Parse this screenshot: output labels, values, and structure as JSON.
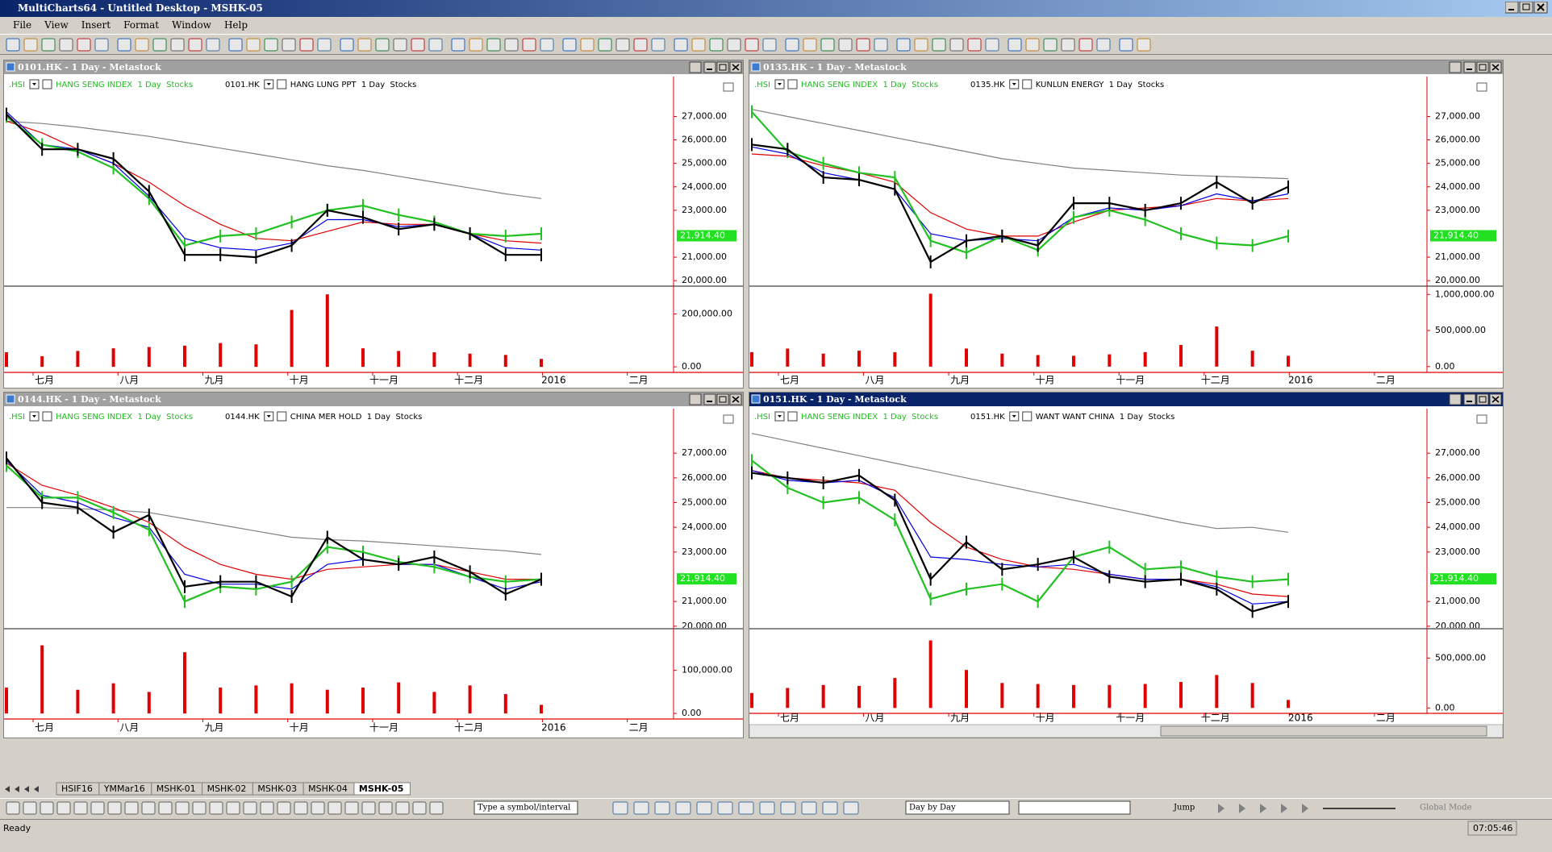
{
  "window": {
    "title": "MultiCharts64 - Untitled Desktop - MSHK-05"
  },
  "menu": [
    "File",
    "View",
    "Insert",
    "Format",
    "Window",
    "Help"
  ],
  "chart_data": [
    {
      "type": "line",
      "title": "0101.HK - 1 Day - Metastock",
      "active": false,
      "legend": [
        {
          "symbol": ".HSI",
          "description": "HANG SENG INDEX  1 Day  Stocks",
          "color": "#22bb22"
        },
        {
          "symbol": "0101.HK",
          "description": "HANG LUNG PPT  1 Day  Stocks",
          "color": "#000000"
        }
      ],
      "series": [
        {
          "name": ".HSI",
          "color": "#22c022",
          "values": [
            27000,
            25800,
            25500,
            24800,
            23500,
            21500,
            21900,
            22000,
            22500,
            23000,
            23200,
            22800,
            22500,
            22000,
            21900,
            22000
          ]
        },
        {
          "name": "0101.HK",
          "color": "#000000",
          "values": [
            27100,
            25600,
            25600,
            25200,
            23800,
            21100,
            21100,
            21000,
            21500,
            23000,
            22700,
            22200,
            22400,
            22000,
            21100,
            21100
          ]
        },
        {
          "color": "#e00000",
          "values": [
            26800,
            26300,
            25600,
            25000,
            24200,
            23200,
            22400,
            21800,
            21700,
            22100,
            22500,
            22400,
            22400,
            22000,
            21700,
            21600
          ]
        },
        {
          "color": "#0000e0",
          "values": [
            27200,
            25800,
            25600,
            25000,
            23600,
            21800,
            21400,
            21300,
            21600,
            22600,
            22600,
            22300,
            22400,
            22000,
            21400,
            21300
          ]
        },
        {
          "color": "#808080",
          "values": [
            26800,
            26700,
            26550,
            26350,
            26150,
            25900,
            25650,
            25400,
            25150,
            24900,
            24700,
            24450,
            24200,
            23950,
            23700,
            23500
          ]
        }
      ],
      "last_price": {
        "value": 21914.4,
        "label": "21,914.40"
      },
      "ylim": [
        19800,
        28700
      ],
      "yticks": [
        {
          "value": 20000,
          "label": "20,000.00"
        },
        {
          "value": 21000,
          "label": "21,000.00"
        },
        {
          "value": 23000,
          "label": "23,000.00"
        },
        {
          "value": 24000,
          "label": "24,000.00"
        },
        {
          "value": 25000,
          "label": "25,000.00"
        },
        {
          "value": 26000,
          "label": "26,000.00"
        },
        {
          "value": 27000,
          "label": "27,000.00"
        }
      ],
      "volume": {
        "color": "#e00000",
        "values": [
          55000,
          40000,
          60000,
          70000,
          75000,
          80000,
          90000,
          85000,
          215000,
          274000,
          70000,
          60000,
          55000,
          50000,
          45000,
          30000
        ],
        "ylim": [
          -18000,
          296000
        ],
        "yticks": [
          {
            "value": 0,
            "label": "0.00"
          },
          {
            "value": 200000,
            "label": "200,000.00"
          }
        ]
      },
      "x_labels": [
        "七月",
        "八月",
        "九月",
        "十月",
        "十一月",
        "十二月",
        "2016",
        "二月"
      ]
    },
    {
      "type": "line",
      "title": "0135.HK - 1 Day - Metastock",
      "active": false,
      "legend": [
        {
          "symbol": ".HSI",
          "description": "HANG SENG INDEX  1 Day  Stocks",
          "color": "#22bb22"
        },
        {
          "symbol": "0135.HK",
          "description": "KUNLUN ENERGY  1 Day  Stocks",
          "color": "#000000"
        }
      ],
      "series": [
        {
          "name": ".HSI",
          "color": "#22c022",
          "values": [
            27200,
            25500,
            25000,
            24600,
            24400,
            21700,
            21200,
            21900,
            21300,
            22700,
            23000,
            22600,
            22000,
            21600,
            21500,
            21900
          ]
        },
        {
          "name": "0135.HK",
          "color": "#000000",
          "values": [
            25800,
            25600,
            24400,
            24300,
            23900,
            20800,
            21700,
            21900,
            21500,
            23300,
            23300,
            23000,
            23300,
            24200,
            23300,
            24000
          ]
        },
        {
          "color": "#e00000",
          "values": [
            25400,
            25300,
            24900,
            24600,
            24200,
            22900,
            22200,
            21900,
            21900,
            22500,
            23000,
            23100,
            23200,
            23500,
            23400,
            23500
          ]
        },
        {
          "color": "#0000e0",
          "values": [
            25700,
            25400,
            24600,
            24300,
            23900,
            22000,
            21700,
            21800,
            21700,
            22700,
            23100,
            23000,
            23200,
            23700,
            23400,
            23700
          ]
        },
        {
          "color": "#808080",
          "values": [
            27300,
            27000,
            26700,
            26400,
            26100,
            25800,
            25500,
            25200,
            25000,
            24800,
            24700,
            24600,
            24500,
            24450,
            24400,
            24350
          ]
        }
      ],
      "last_price": {
        "value": 21914.4,
        "label": "21,914.40"
      },
      "ylim": [
        19800,
        28700
      ],
      "yticks": [
        {
          "value": 20000,
          "label": "20,000.00"
        },
        {
          "value": 21000,
          "label": "21,000.00"
        },
        {
          "value": 23000,
          "label": "23,000.00"
        },
        {
          "value": 24000,
          "label": "24,000.00"
        },
        {
          "value": 25000,
          "label": "25,000.00"
        },
        {
          "value": 26000,
          "label": "26,000.00"
        },
        {
          "value": 27000,
          "label": "27,000.00"
        }
      ],
      "volume": {
        "color": "#e00000",
        "values": [
          200000,
          250000,
          180000,
          220000,
          200000,
          1010000,
          250000,
          180000,
          160000,
          150000,
          170000,
          200000,
          300000,
          555000,
          220000,
          150000
        ],
        "ylim": [
          -69000,
          1081000
        ],
        "yticks": [
          {
            "value": 0,
            "label": "0.00"
          },
          {
            "value": 500000,
            "label": "500,000.00"
          },
          {
            "value": 1000000,
            "label": "1,000,000.00"
          }
        ]
      },
      "x_labels": [
        "七月",
        "八月",
        "九月",
        "十月",
        "十一月",
        "十二月",
        "2016",
        "二月"
      ]
    },
    {
      "type": "line",
      "title": "0144.HK - 1 Day - Metastock",
      "active": false,
      "legend": [
        {
          "symbol": ".HSI",
          "description": "HANG SENG INDEX  1 Day  Stocks",
          "color": "#22bb22"
        },
        {
          "symbol": "0144.HK",
          "description": "CHINA MER HOLD  1 Day  Stocks",
          "color": "#000000"
        }
      ],
      "series": [
        {
          "name": ".HSI",
          "color": "#22c022",
          "values": [
            26500,
            25200,
            25200,
            24600,
            23900,
            21000,
            21600,
            21500,
            21800,
            23200,
            23000,
            22600,
            22400,
            22000,
            21800,
            21900
          ]
        },
        {
          "name": "0144.HK",
          "color": "#000000",
          "values": [
            26800,
            25000,
            24800,
            23800,
            24500,
            21600,
            21800,
            21800,
            21200,
            23600,
            22700,
            22500,
            22800,
            22200,
            21300,
            21900
          ]
        },
        {
          "color": "#e00000",
          "values": [
            26600,
            25700,
            25300,
            24800,
            24200,
            23200,
            22500,
            22100,
            21900,
            22300,
            22400,
            22500,
            22500,
            22200,
            21900,
            21900
          ]
        },
        {
          "color": "#0000e0",
          "values": [
            26700,
            25300,
            25000,
            24400,
            24000,
            22100,
            21700,
            21700,
            21500,
            22500,
            22700,
            22500,
            22500,
            22000,
            21500,
            21800
          ]
        },
        {
          "color": "#808080",
          "values": [
            24800,
            24800,
            24750,
            24700,
            24600,
            24350,
            24100,
            23850,
            23600,
            23500,
            23450,
            23350,
            23250,
            23150,
            23050,
            22900
          ]
        }
      ],
      "last_price": {
        "value": 21914.4,
        "label": "21,914.40"
      },
      "ylim": [
        19930,
        28800
      ],
      "yticks": [
        {
          "value": 20000,
          "label": "20,000.00"
        },
        {
          "value": 21000,
          "label": "21,000.00"
        },
        {
          "value": 23000,
          "label": "23,000.00"
        },
        {
          "value": 24000,
          "label": "24,000.00"
        },
        {
          "value": 25000,
          "label": "25,000.00"
        },
        {
          "value": 26000,
          "label": "26,000.00"
        },
        {
          "value": 27000,
          "label": "27,000.00"
        }
      ],
      "volume": {
        "color": "#e00000",
        "values": [
          60000,
          158000,
          55000,
          70000,
          50000,
          142000,
          60000,
          65000,
          70000,
          55000,
          60000,
          72000,
          50000,
          65000,
          45000,
          20000
        ],
        "ylim": [
          -11000,
          191000
        ],
        "yticks": [
          {
            "value": 0,
            "label": "0.00"
          },
          {
            "value": 100000,
            "label": "100,000.00"
          }
        ]
      },
      "x_labels": [
        "七月",
        "八月",
        "九月",
        "十月",
        "十一月",
        "十二月",
        "2016",
        "二月"
      ]
    },
    {
      "type": "line",
      "title": "0151.HK - 1 Day - Metastock",
      "active": true,
      "legend": [
        {
          "symbol": ".HSI",
          "description": "HANG SENG INDEX  1 Day  Stocks",
          "color": "#22bb22"
        },
        {
          "symbol": "0151.HK",
          "description": "WANT WANT CHINA  1 Day  Stocks",
          "color": "#000000"
        }
      ],
      "series": [
        {
          "name": ".HSI",
          "color": "#22c022",
          "values": [
            26700,
            25600,
            25000,
            25200,
            24300,
            21100,
            21500,
            21700,
            21000,
            22800,
            23200,
            22300,
            22400,
            22000,
            21800,
            21900
          ]
        },
        {
          "name": "0151.HK",
          "color": "#000000",
          "values": [
            26200,
            26000,
            25800,
            26100,
            25100,
            21900,
            23400,
            22300,
            22500,
            22800,
            22000,
            21800,
            21900,
            21500,
            20600,
            21000
          ]
        },
        {
          "color": "#e00000",
          "values": [
            26300,
            26000,
            25900,
            25800,
            25500,
            24200,
            23200,
            22700,
            22400,
            22300,
            22100,
            21900,
            21900,
            21700,
            21300,
            21200
          ]
        },
        {
          "color": "#0000e0",
          "values": [
            26300,
            25900,
            25800,
            25900,
            25200,
            22800,
            22700,
            22500,
            22400,
            22500,
            22100,
            21900,
            21900,
            21600,
            20900,
            21000
          ]
        },
        {
          "color": "#808080",
          "values": [
            27800,
            27500,
            27200,
            26900,
            26600,
            26300,
            26000,
            25700,
            25400,
            25100,
            24800,
            24500,
            24200,
            23950,
            24000,
            23800
          ]
        }
      ],
      "last_price": {
        "value": 21914.4,
        "label": "21,914.40"
      },
      "ylim": [
        19930,
        28800
      ],
      "yticks": [
        {
          "value": 20000,
          "label": "20,000.00"
        },
        {
          "value": 21000,
          "label": "21,000.00"
        },
        {
          "value": 23000,
          "label": "23,000.00"
        },
        {
          "value": 24000,
          "label": "24,000.00"
        },
        {
          "value": 25000,
          "label": "25,000.00"
        },
        {
          "value": 26000,
          "label": "26,000.00"
        },
        {
          "value": 27000,
          "label": "27,000.00"
        }
      ],
      "volume": {
        "color": "#e00000",
        "values": [
          150000,
          200000,
          230000,
          220000,
          300000,
          676000,
          380000,
          250000,
          240000,
          230000,
          230000,
          240000,
          260000,
          330000,
          250000,
          80000
        ],
        "ylim": [
          -46000,
          769000
        ],
        "yticks": [
          {
            "value": 0,
            "label": "0.00"
          },
          {
            "value": 500000,
            "label": "500,000.00"
          }
        ]
      },
      "x_labels": [
        "七月",
        "八月",
        "九月",
        "十月",
        "十一月",
        "十二月",
        "2016",
        "二月"
      ]
    }
  ],
  "tabs": [
    "HSIF16",
    "YMMar16",
    "MSHK-01",
    "MSHK-02",
    "MSHK-03",
    "MSHK-04",
    "MSHK-05"
  ],
  "bottom_toolbar": {
    "symbol_box": "Type a symbol/interval",
    "playback": "Day by Day",
    "jump": "Jump",
    "mode": "Global Mode"
  },
  "status": {
    "text": "Ready",
    "time": "07:05:46"
  }
}
